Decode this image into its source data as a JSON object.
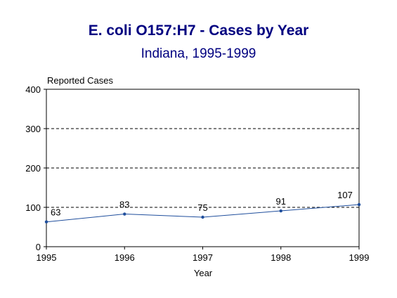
{
  "chart_data": {
    "type": "line",
    "title": "E. coli O157:H7 - Cases by Year",
    "subtitle": "Indiana, 1995-1999",
    "ylabel": "Reported Cases",
    "xlabel": "Year",
    "x": [
      "1995",
      "1996",
      "1997",
      "1998",
      "1999"
    ],
    "series": [
      {
        "values": [
          63,
          83,
          75,
          91,
          107
        ]
      }
    ],
    "data_labels": [
      "63",
      "83",
      "75",
      "91",
      "107"
    ],
    "ylim": [
      0,
      400
    ],
    "yticks": [
      "0",
      "100",
      "200",
      "300",
      "400"
    ],
    "grid": "horizontal dashed",
    "legend": "none",
    "colors": {
      "title": "#000080",
      "line": "#1f4e9c",
      "marker": "#1f4e9c"
    }
  }
}
